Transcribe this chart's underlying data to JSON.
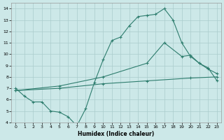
{
  "title": "",
  "xlabel": "Humidex (Indice chaleur)",
  "bg_color": "#cce8e8",
  "grid_color": "#aacccc",
  "line_color": "#2e7d6e",
  "xlim": [
    -0.5,
    23.5
  ],
  "ylim": [
    4,
    14.5
  ],
  "xticks": [
    0,
    1,
    2,
    3,
    4,
    5,
    6,
    7,
    8,
    9,
    10,
    11,
    12,
    13,
    14,
    15,
    16,
    17,
    18,
    19,
    20,
    21,
    22,
    23
  ],
  "yticks": [
    4,
    5,
    6,
    7,
    8,
    9,
    10,
    11,
    12,
    13,
    14
  ],
  "line1_x": [
    0,
    1,
    2,
    3,
    4,
    5,
    6,
    7,
    8,
    9,
    10,
    11,
    12,
    13,
    14,
    15,
    16,
    17,
    18,
    19,
    20,
    21,
    22,
    23
  ],
  "line1_y": [
    7.0,
    6.3,
    5.8,
    5.8,
    5.0,
    4.9,
    4.5,
    3.7,
    5.2,
    7.5,
    9.5,
    11.2,
    11.5,
    12.5,
    13.3,
    13.4,
    13.5,
    14.0,
    13.0,
    11.0,
    9.8,
    9.2,
    8.7,
    8.3
  ],
  "line2_x": [
    0,
    5,
    10,
    15,
    20,
    23
  ],
  "line2_y": [
    6.8,
    7.0,
    7.4,
    7.65,
    7.9,
    8.0
  ],
  "line3_x": [
    0,
    5,
    10,
    15,
    17,
    19,
    20,
    21,
    22,
    23
  ],
  "line3_y": [
    6.8,
    7.2,
    8.0,
    9.2,
    11.0,
    9.8,
    9.9,
    9.2,
    8.8,
    7.7
  ],
  "marker": "+",
  "markersize": 3,
  "linewidth": 0.8
}
